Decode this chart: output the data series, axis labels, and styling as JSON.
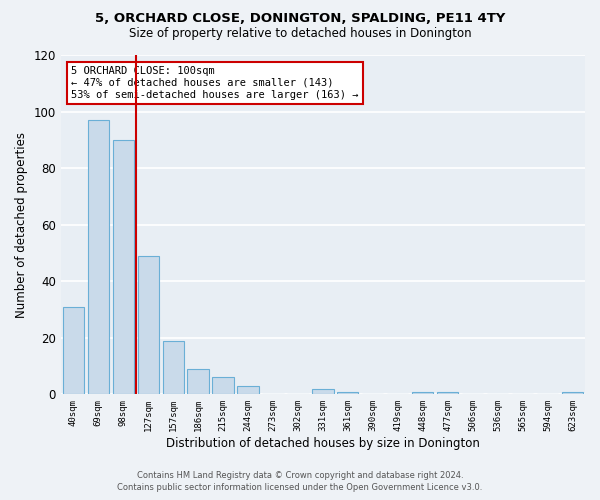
{
  "title": "5, ORCHARD CLOSE, DONINGTON, SPALDING, PE11 4TY",
  "subtitle": "Size of property relative to detached houses in Donington",
  "xlabel": "Distribution of detached houses by size in Donington",
  "ylabel": "Number of detached properties",
  "bar_labels": [
    "40sqm",
    "69sqm",
    "98sqm",
    "127sqm",
    "157sqm",
    "186sqm",
    "215sqm",
    "244sqm",
    "273sqm",
    "302sqm",
    "331sqm",
    "361sqm",
    "390sqm",
    "419sqm",
    "448sqm",
    "477sqm",
    "506sqm",
    "536sqm",
    "565sqm",
    "594sqm",
    "623sqm"
  ],
  "bar_heights": [
    31,
    97,
    90,
    49,
    19,
    9,
    6,
    3,
    0,
    0,
    2,
    1,
    0,
    0,
    1,
    1,
    0,
    0,
    0,
    0,
    1
  ],
  "bar_color": "#c9daea",
  "bar_edgecolor": "#6aafd6",
  "vline_x_index": 2,
  "vline_color": "#cc0000",
  "annotation_text": "5 ORCHARD CLOSE: 100sqm\n← 47% of detached houses are smaller (143)\n53% of semi-detached houses are larger (163) →",
  "annotation_box_edgecolor": "#cc0000",
  "ylim": [
    0,
    120
  ],
  "yticks": [
    0,
    20,
    40,
    60,
    80,
    100,
    120
  ],
  "bg_color": "#eef2f6",
  "plot_bg_color": "#e8eef4",
  "footer_line1": "Contains HM Land Registry data © Crown copyright and database right 2024.",
  "footer_line2": "Contains public sector information licensed under the Open Government Licence v3.0."
}
